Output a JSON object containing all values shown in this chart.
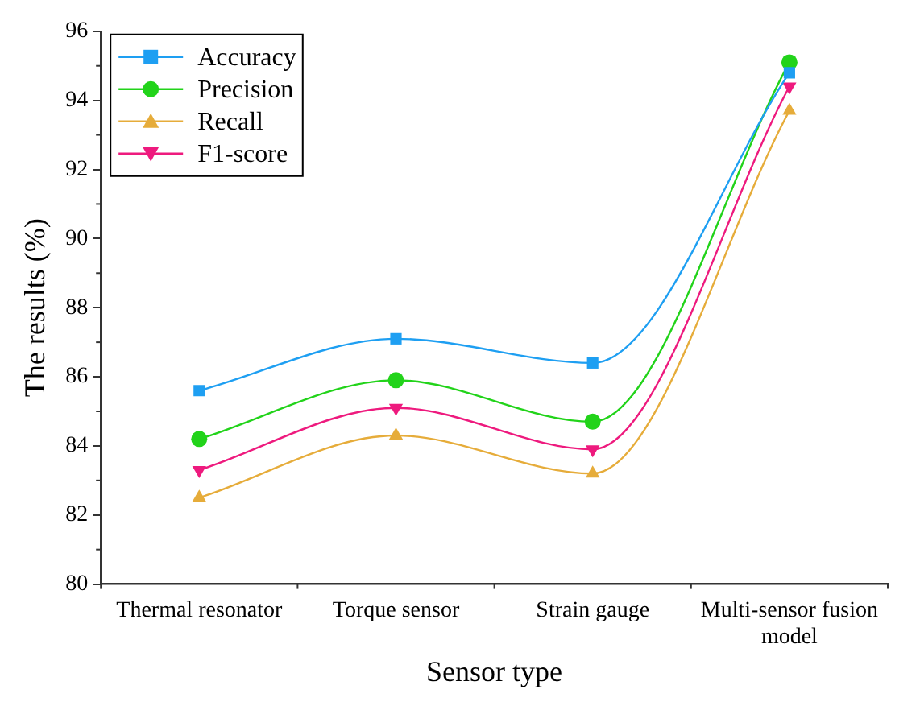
{
  "chart_data": {
    "type": "line",
    "xlabel": "Sensor type",
    "ylabel": "The results (%)",
    "categories": [
      "Thermal resonator",
      "Torque sensor",
      "Strain gauge",
      "Multi-sensor fusion model"
    ],
    "series": [
      {
        "name": "Accuracy",
        "color": "#1e9ff2",
        "marker": "square",
        "values": [
          85.6,
          87.1,
          86.4,
          94.8
        ]
      },
      {
        "name": "Precision",
        "color": "#22d31a",
        "marker": "circle",
        "values": [
          84.2,
          85.9,
          84.7,
          95.1
        ]
      },
      {
        "name": "Recall",
        "color": "#e6ac3a",
        "marker": "triangle",
        "values": [
          82.5,
          84.3,
          83.2,
          93.7
        ]
      },
      {
        "name": "F1-score",
        "color": "#ee1a7e",
        "marker": "triangle-down",
        "values": [
          83.3,
          85.1,
          83.9,
          94.4
        ]
      }
    ],
    "ylim": [
      80,
      96
    ],
    "yticks": [
      80,
      82,
      84,
      86,
      88,
      90,
      92,
      94,
      96
    ],
    "grid": false,
    "legend": "top left",
    "line_style": "solid"
  }
}
